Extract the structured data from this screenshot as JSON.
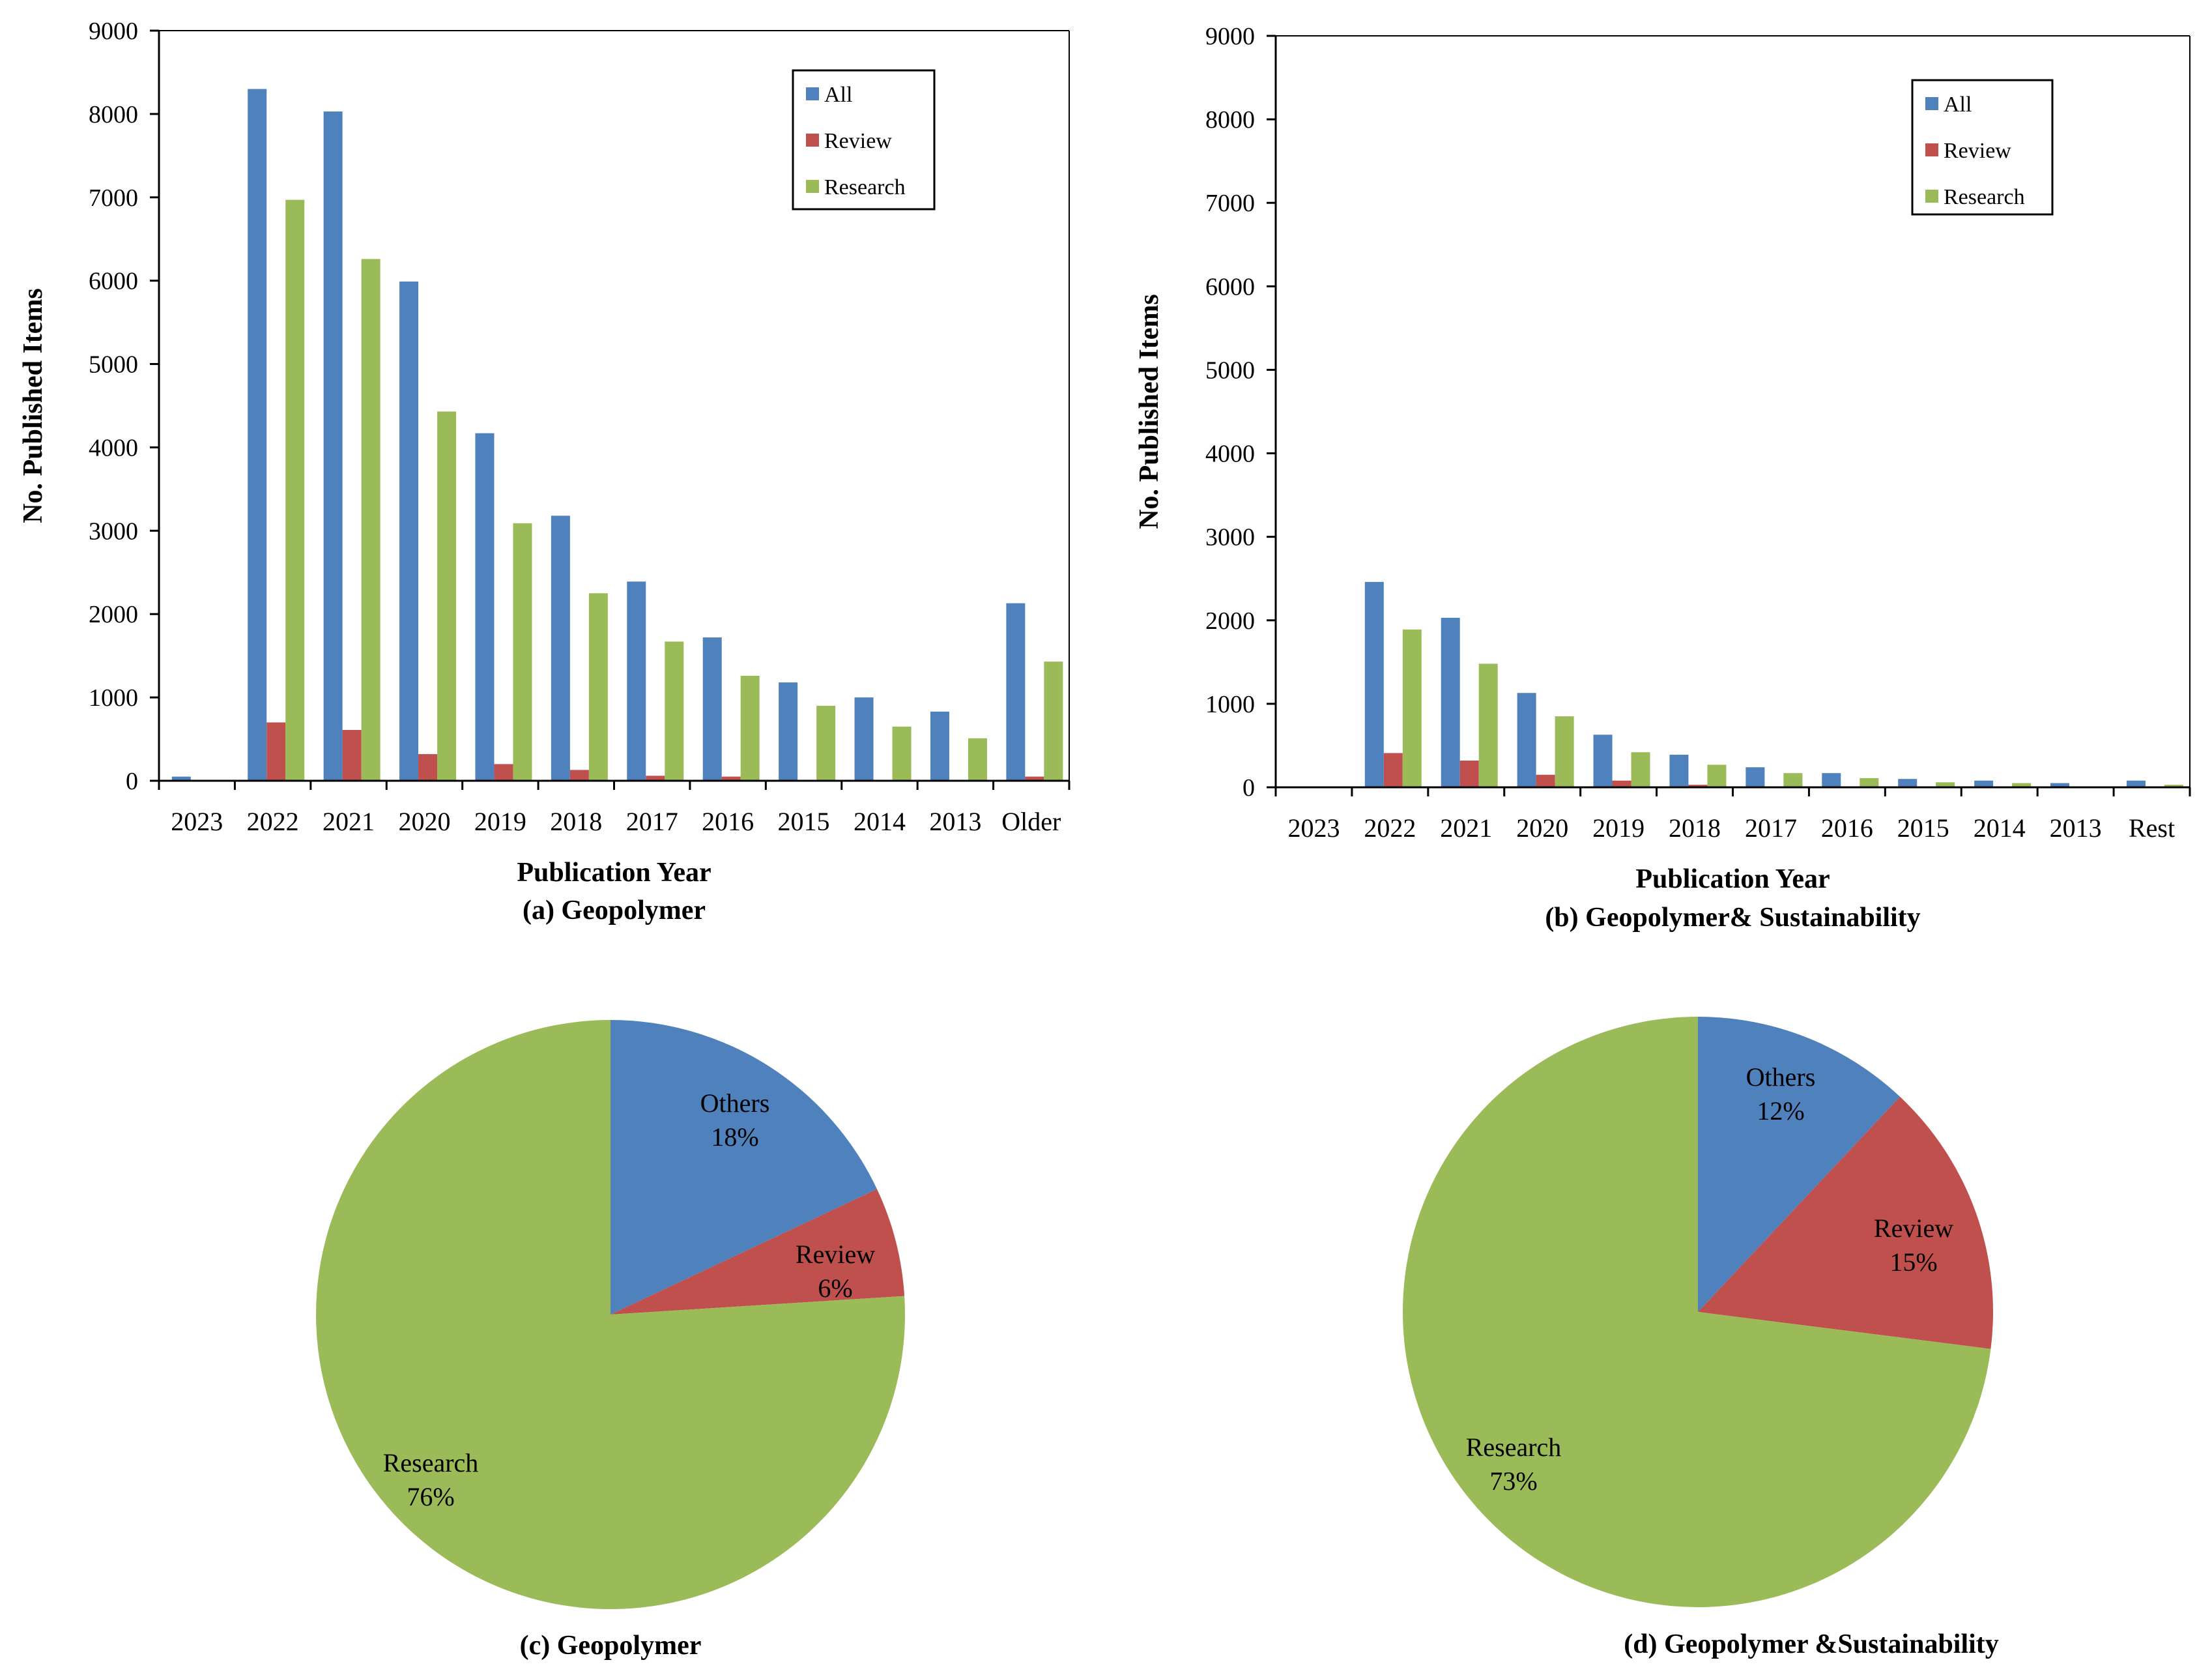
{
  "colors": {
    "all": "#4F81BD",
    "review": "#C0504D",
    "research": "#9BBB59",
    "axis": "#000000"
  },
  "chart_data": [
    {
      "type": "bar",
      "panel": "a",
      "caption": "(a) Geopolymer",
      "xlabel": "Publication Year",
      "ylabel": "No. Published Items",
      "ylim": [
        0,
        9000
      ],
      "yticks": [
        0,
        1000,
        2000,
        3000,
        4000,
        5000,
        6000,
        7000,
        8000,
        9000
      ],
      "grid": false,
      "legend_position": "top-right",
      "categories": [
        "2023",
        "2022",
        "2021",
        "2020",
        "2019",
        "2018",
        "2017",
        "2016",
        "2015",
        "2014",
        "2013",
        "Older"
      ],
      "series": [
        {
          "name": "All",
          "color_key": "all",
          "values": [
            50,
            8300,
            8030,
            5990,
            4170,
            3180,
            2390,
            1720,
            1180,
            1000,
            830,
            2130
          ]
        },
        {
          "name": "Review",
          "color_key": "review",
          "values": [
            0,
            700,
            610,
            320,
            200,
            130,
            60,
            50,
            0,
            0,
            0,
            50
          ]
        },
        {
          "name": "Research",
          "color_key": "research",
          "values": [
            0,
            6970,
            6260,
            4430,
            3090,
            2250,
            1670,
            1260,
            900,
            650,
            510,
            1430
          ]
        }
      ]
    },
    {
      "type": "bar",
      "panel": "b",
      "caption": "(b) Geopolymer& Sustainability",
      "xlabel": "Publication Year",
      "ylabel": "No. Published Items",
      "ylim": [
        0,
        9000
      ],
      "yticks": [
        0,
        1000,
        2000,
        3000,
        4000,
        5000,
        6000,
        7000,
        8000,
        9000
      ],
      "grid": false,
      "legend_position": "top-right",
      "categories": [
        "2023",
        "2022",
        "2021",
        "2020",
        "2019",
        "2018",
        "2017",
        "2016",
        "2015",
        "2014",
        "2013",
        "Rest"
      ],
      "series": [
        {
          "name": "All",
          "color_key": "all",
          "values": [
            0,
            2460,
            2030,
            1130,
            630,
            390,
            240,
            170,
            100,
            80,
            50,
            80
          ]
        },
        {
          "name": "Review",
          "color_key": "review",
          "values": [
            0,
            410,
            320,
            150,
            80,
            30,
            0,
            0,
            0,
            0,
            0,
            0
          ]
        },
        {
          "name": "Research",
          "color_key": "research",
          "values": [
            0,
            1890,
            1480,
            850,
            420,
            270,
            170,
            110,
            60,
            50,
            0,
            30
          ]
        }
      ]
    },
    {
      "type": "pie",
      "panel": "c",
      "caption": "(c) Geopolymer",
      "slices": [
        {
          "label": "Others",
          "percent_label": "18%",
          "value": 18,
          "color_key": "all"
        },
        {
          "label": "Review",
          "percent_label": "6%",
          "value": 6,
          "color_key": "review"
        },
        {
          "label": "Research",
          "percent_label": "76%",
          "value": 76,
          "color_key": "research"
        }
      ]
    },
    {
      "type": "pie",
      "panel": "d",
      "caption": "(d) Geopolymer &Sustainability",
      "slices": [
        {
          "label": "Others",
          "percent_label": "12%",
          "value": 12,
          "color_key": "all"
        },
        {
          "label": "Review",
          "percent_label": "15%",
          "value": 15,
          "color_key": "review"
        },
        {
          "label": "Research",
          "percent_label": "73%",
          "value": 73,
          "color_key": "research"
        }
      ]
    }
  ]
}
